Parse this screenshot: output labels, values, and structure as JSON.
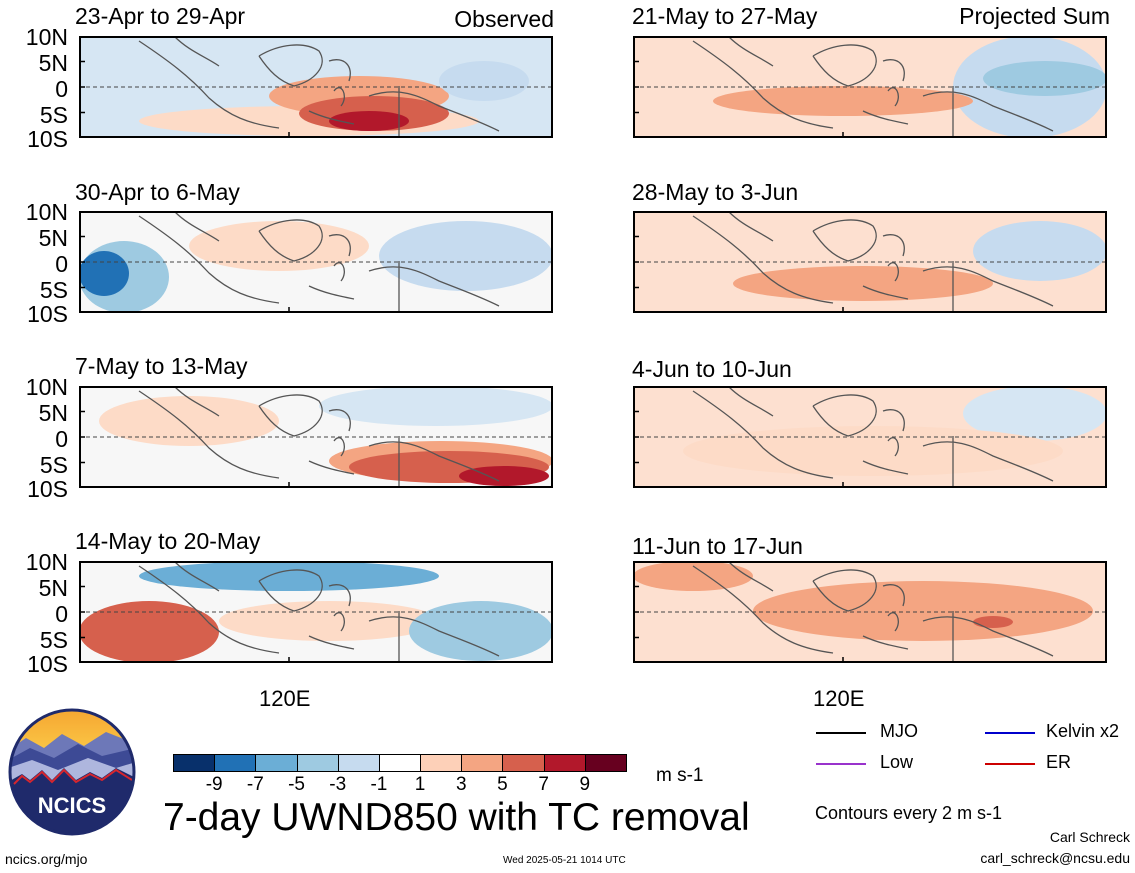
{
  "headers": {
    "left": "Observed",
    "right": "Projected Sum"
  },
  "panels": [
    {
      "period": "23-Apr to 29-Apr",
      "column": "observed"
    },
    {
      "period": "30-Apr to 6-May",
      "column": "observed"
    },
    {
      "period": "7-May to 13-May",
      "column": "observed"
    },
    {
      "period": "14-May to 20-May",
      "column": "observed"
    },
    {
      "period": "21-May to 27-May",
      "column": "projected"
    },
    {
      "period": "28-May to 3-Jun",
      "column": "projected"
    },
    {
      "period": "4-Jun to 10-Jun",
      "column": "projected"
    },
    {
      "period": "11-Jun to 17-Jun",
      "column": "projected"
    }
  ],
  "y_axis": {
    "labels": [
      "10N",
      "5N",
      "0",
      "5S",
      "10S"
    ]
  },
  "x_axis": {
    "label": "120E"
  },
  "colorbar": {
    "tick_labels": [
      "-9",
      "-7",
      "-5",
      "-3",
      "-1",
      "1",
      "3",
      "5",
      "7",
      "9"
    ],
    "colors": [
      "#08306b",
      "#2171b5",
      "#6baed6",
      "#9ecae1",
      "#c6dbef",
      "#ffffff",
      "#fdd0b8",
      "#f4a582",
      "#d6604d",
      "#b2182b",
      "#67001f"
    ],
    "units": "m s-1"
  },
  "legend": {
    "items": [
      {
        "label": "MJO",
        "color": "#000000"
      },
      {
        "label": "Kelvin x2",
        "color": "#0000cc"
      },
      {
        "label": "Low",
        "color": "#9932cc"
      },
      {
        "label": "ER",
        "color": "#cc0000"
      }
    ],
    "contour_note": "Contours every 2 m s-1"
  },
  "title": "7-day UWND850 with TC removal",
  "logo_text": "NCICS",
  "footer": {
    "url": "ncics.org/mjo",
    "timestamp": "Wed 2025-05-21 1014 UTC",
    "author": "Carl Schreck",
    "email": "carl_schreck@ncsu.edu"
  }
}
